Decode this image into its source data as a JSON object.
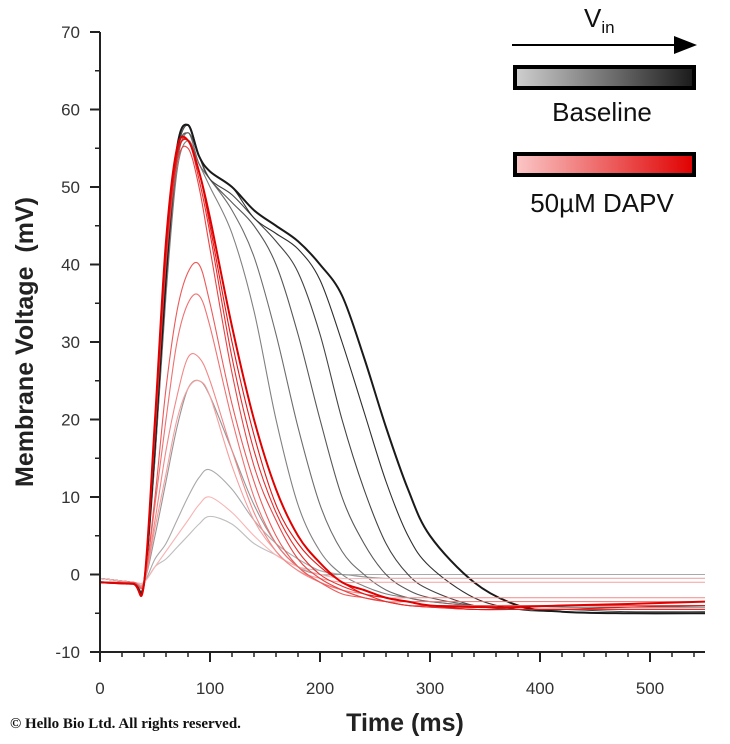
{
  "chart_data": {
    "type": "line",
    "title": "",
    "xlabel": "Time (ms)",
    "ylabel": "Membrane Voltage  (mV)",
    "xlim": [
      0,
      550
    ],
    "ylim": [
      -10,
      70
    ],
    "xticks": [
      0,
      100,
      200,
      300,
      400,
      500
    ],
    "yticks": [
      -10,
      0,
      10,
      20,
      30,
      40,
      50,
      60,
      70
    ],
    "grid": false,
    "legend": {
      "placement": "top-right",
      "arrow_label_main": "V",
      "arrow_label_sub": "in",
      "entries": [
        {
          "name": "Baseline",
          "color_low": "#d0d0d0",
          "color_high": "#1a1a1a"
        },
        {
          "name": "50µM DAPV",
          "color_low": "#fbc8c8",
          "color_high": "#e00000"
        }
      ]
    },
    "x": [
      0,
      30,
      40,
      50,
      60,
      70,
      80,
      90,
      100,
      120,
      140,
      160,
      180,
      200,
      220,
      240,
      260,
      280,
      300,
      340,
      380,
      420,
      480,
      550
    ],
    "groups": [
      {
        "name": "Baseline",
        "traces": [
          [
            -0.5,
            -1,
            -1,
            1,
            2,
            3.5,
            5,
            6.5,
            7.5,
            6.5,
            4,
            2.5,
            1,
            0.5,
            0,
            0,
            0,
            0,
            0,
            0,
            0,
            0,
            0,
            0
          ],
          [
            -0.5,
            -1,
            -1,
            2,
            4,
            7,
            10,
            12.5,
            13.5,
            11,
            7,
            4,
            2,
            0.5,
            0,
            0,
            0,
            0,
            0,
            0,
            0,
            0,
            0,
            0
          ],
          [
            -0.5,
            -1,
            -1,
            5,
            12,
            19,
            24,
            25,
            23,
            16,
            9,
            4,
            1,
            0,
            0,
            -0.3,
            -0.5,
            -0.5,
            -0.5,
            -0.5,
            -0.5,
            -0.5,
            -0.5,
            -0.5
          ],
          [
            -0.5,
            -1,
            -1,
            15,
            36,
            52,
            56,
            53,
            50,
            44,
            34,
            20,
            9,
            3,
            0,
            -1.5,
            -2.5,
            -3,
            -3.5,
            -4,
            -4,
            -4,
            -4,
            -4
          ],
          [
            -0.5,
            -1,
            -1,
            15,
            37,
            53,
            57,
            53,
            51,
            47,
            41,
            31,
            19,
            9,
            3,
            0,
            -2,
            -3,
            -3.5,
            -4,
            -4,
            -4.2,
            -4.2,
            -4.2
          ],
          [
            -0.5,
            -1,
            -1,
            16,
            38,
            54,
            57,
            54,
            51,
            48,
            45,
            40,
            31,
            20,
            10,
            4,
            0,
            -2,
            -3,
            -4,
            -4.5,
            -4.5,
            -4.5,
            -4.5
          ],
          [
            -1,
            -1,
            -1,
            16,
            38,
            54,
            58,
            54,
            51,
            49,
            46,
            43,
            39,
            31,
            20,
            11,
            4,
            0,
            -2,
            -4,
            -4.5,
            -4.5,
            -4.8,
            -4.8
          ],
          [
            -1,
            -1.2,
            -1.2,
            16,
            38,
            55,
            58,
            54,
            52,
            50,
            46,
            44,
            42,
            38,
            30,
            21,
            12,
            5,
            1,
            -3,
            -4.5,
            -4.8,
            -5,
            -5
          ],
          [
            -1,
            -1.2,
            -1.2,
            17,
            39,
            55,
            58,
            54,
            52,
            50,
            47,
            45,
            43,
            40,
            36,
            28,
            19,
            11,
            5,
            -1,
            -4,
            -4.8,
            -5,
            -5
          ]
        ]
      },
      {
        "name": "50µM DAPV",
        "traces": [
          [
            -0.5,
            -1,
            -1,
            1,
            3,
            5,
            7,
            9,
            10,
            8,
            5,
            2.5,
            1,
            0,
            -0.5,
            -0.5,
            -0.5,
            -0.5,
            -0.5,
            -0.5,
            -0.5,
            -0.5,
            -0.5,
            -0.5
          ],
          [
            -1,
            -1,
            -1,
            6,
            13,
            20,
            24,
            25,
            23,
            14,
            7,
            3,
            0.5,
            -0.5,
            -1,
            -1,
            -1,
            -1,
            -1,
            -1,
            -1,
            -1,
            -1,
            -1
          ],
          [
            -1,
            -1,
            -1,
            7,
            16,
            23,
            28,
            28,
            25,
            16,
            8,
            3,
            0.5,
            -1,
            -2,
            -2.5,
            -3,
            -3,
            -3,
            -3,
            -3,
            -3,
            -3,
            -3
          ],
          [
            -1,
            -1,
            -1,
            9,
            20,
            30,
            35,
            36,
            32,
            20,
            10,
            4,
            1,
            -1,
            -2,
            -3,
            -3.5,
            -3.5,
            -3.5,
            -3.5,
            -3.5,
            -3.5,
            -3.5,
            -3.5
          ],
          [
            -1,
            -1,
            -1,
            10,
            24,
            34,
            39,
            40,
            35,
            22,
            12,
            5,
            1,
            -1,
            -2.5,
            -3,
            -3.5,
            -4,
            -4,
            -4,
            -4,
            -4,
            -4,
            -4
          ],
          [
            -1,
            -1.2,
            -1.2,
            18,
            40,
            53,
            55,
            50,
            42,
            26,
            14,
            7,
            2,
            -0.5,
            -2,
            -3,
            -3.5,
            -4,
            -4.2,
            -4.5,
            -4.5,
            -4.5,
            -4.5,
            -4.5
          ],
          [
            -1,
            -1.2,
            -1.2,
            19,
            41,
            54,
            56,
            51,
            44,
            28,
            16,
            8,
            3,
            0,
            -1.5,
            -2.5,
            -3.5,
            -4,
            -4.2,
            -4.5,
            -4.5,
            -4.5,
            -4.5,
            -4.5
          ],
          [
            -1,
            -1.2,
            -1.2,
            20,
            42,
            54,
            56,
            52,
            45,
            30,
            18,
            9,
            4,
            1,
            -1,
            -2.5,
            -3,
            -3.5,
            -4,
            -4.5,
            -4.5,
            -4.5,
            -4.2,
            -4
          ],
          [
            -1,
            -1.2,
            -1.2,
            20,
            43,
            55,
            56,
            52,
            46,
            32,
            20,
            11,
            5,
            1.5,
            -1,
            -2,
            -3,
            -3.5,
            -4,
            -4.2,
            -4.2,
            -4,
            -3.8,
            -3.5
          ]
        ]
      }
    ]
  },
  "footer": {
    "copyright": "Hello Bio Ltd. All rights reserved.",
    "copyright_symbol": "©"
  }
}
